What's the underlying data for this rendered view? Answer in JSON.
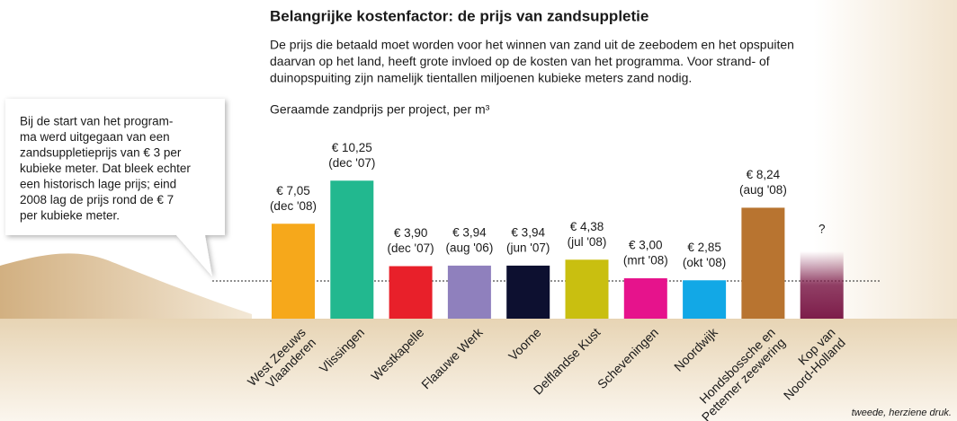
{
  "chart_data": {
    "type": "bar",
    "title": "Belangrijke kostenfactor: de prijs van zandsuppletie",
    "description": [
      "De prijs die betaald moet worden voor het winnen van zand uit de zeebodem en het opspuiten",
      "daarvan op het land, heeft grote invloed op de kosten van het programma. Voor strand- of",
      "duinopspuiting zijn namelijk tientallen miljoenen kubieke meters zand nodig."
    ],
    "subtitle": "Geraamde zandprijs per project, per m³",
    "callout": [
      "Bij de start van het program-",
      "ma werd uitgegaan van een",
      "zandsuppletieprijs van € 3 per",
      "kubieke meter. Dat bleek echter",
      "een historisch lage prijs; eind",
      "2008 lag de prijs rond de € 7",
      "per kubieke meter."
    ],
    "footer": "tweede, herziene druk.",
    "categories": [
      "West Zeeuws\nVlaanderen",
      "Vlissingen",
      "Westkapelle",
      "Flaauwe Werk",
      "Voorne",
      "Delflandse Kust",
      "Scheveningen",
      "Noordwijk",
      "Hondsbossche en\nPettemer zeewering",
      "Kop van\nNoord-Holland"
    ],
    "values": [
      7.05,
      10.25,
      3.9,
      3.94,
      3.94,
      4.38,
      3.0,
      2.85,
      8.24,
      null
    ],
    "value_labels": [
      "€ 7,05",
      "€ 10,25",
      "€ 3,90",
      "€ 3,94",
      "€ 3,94",
      "€ 4,38",
      "€ 3,00",
      "€ 2,85",
      "€ 8,24",
      "?"
    ],
    "periods": [
      "(dec '08)",
      "(dec '07)",
      "(dec '07)",
      "(aug '06)",
      "(jun '07)",
      "(jul '08)",
      "(mrt '08)",
      "(okt '08)",
      "(aug '08)",
      null
    ],
    "colors": [
      "#f6a81b",
      "#22b88f",
      "#e8202a",
      "#8f80bd",
      "#0d1030",
      "#c9bf10",
      "#e6138c",
      "#12a8e6",
      "#b87430",
      "#7d1d4a"
    ],
    "reference_value": 2.8,
    "ylim": [
      0,
      10.5
    ]
  }
}
